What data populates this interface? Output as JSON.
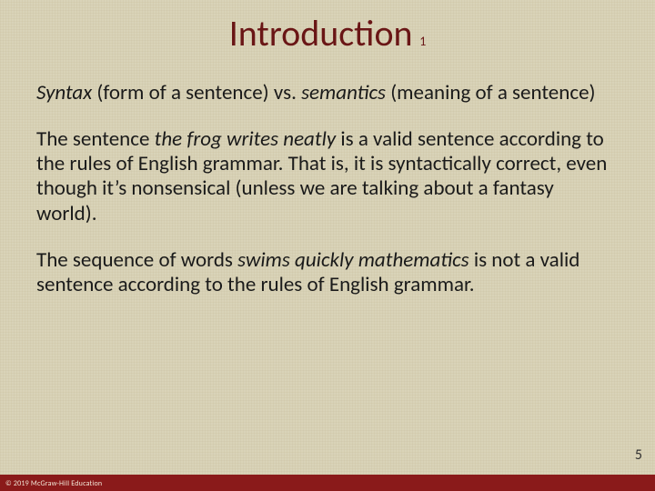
{
  "colors": {
    "background": "#d9d3b8",
    "title": "#6a1616",
    "body_text": "#1a1a1a",
    "footer_bar": "#8a1a1a",
    "footer_text": "#f2e8d8"
  },
  "typography": {
    "title_fontsize": 40,
    "title_sub_fontsize": 14,
    "body_fontsize": 23,
    "pagenum_fontsize": 16,
    "copyright_fontsize": 8,
    "font_family": "Calibri"
  },
  "title": {
    "main": "Introduction",
    "subscript": "1"
  },
  "paragraphs": {
    "p1": {
      "seg1_i": "Syntax",
      "seg2": " (form of a sentence) vs. ",
      "seg3_i": "semantics",
      "seg4": " (meaning of a sentence)"
    },
    "p2": {
      "seg1": "The sentence ",
      "seg2_i": "the frog writes neatly",
      "seg3": " is a valid sentence according to the rules of English grammar. That is, it is syntactically correct, even though it’s nonsensical (unless we are talking about a fantasy world)."
    },
    "p3": {
      "seg1": "The sequence of words ",
      "seg2_i": "swims quickly mathematics",
      "seg3": " is not a valid sentence according to the rules of English grammar."
    }
  },
  "page_number": "5",
  "copyright": "© 2019 McGraw-Hill Education"
}
